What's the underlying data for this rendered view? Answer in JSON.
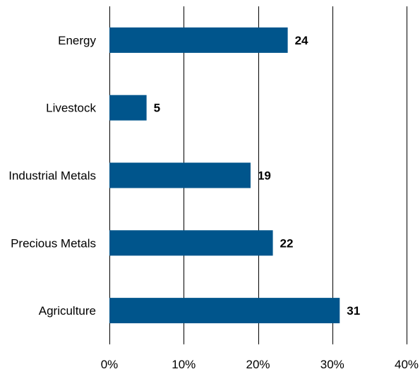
{
  "chart_data": {
    "type": "bar",
    "orientation": "horizontal",
    "categories": [
      "Energy",
      "Livestock",
      "Industrial Metals",
      "Precious Metals",
      "Agriculture"
    ],
    "values": [
      24,
      5,
      19,
      22,
      31
    ],
    "data_labels": [
      "24",
      "5",
      "19",
      "22",
      "31"
    ],
    "value_unit": "%",
    "xlim": [
      0,
      40
    ],
    "x_ticks": [
      0,
      10,
      20,
      30,
      40
    ],
    "x_tick_labels": [
      "0%",
      "10%",
      "20%",
      "30%",
      "40%"
    ],
    "grid": "vertical",
    "legend": "none",
    "bar_color": "#00558C"
  }
}
